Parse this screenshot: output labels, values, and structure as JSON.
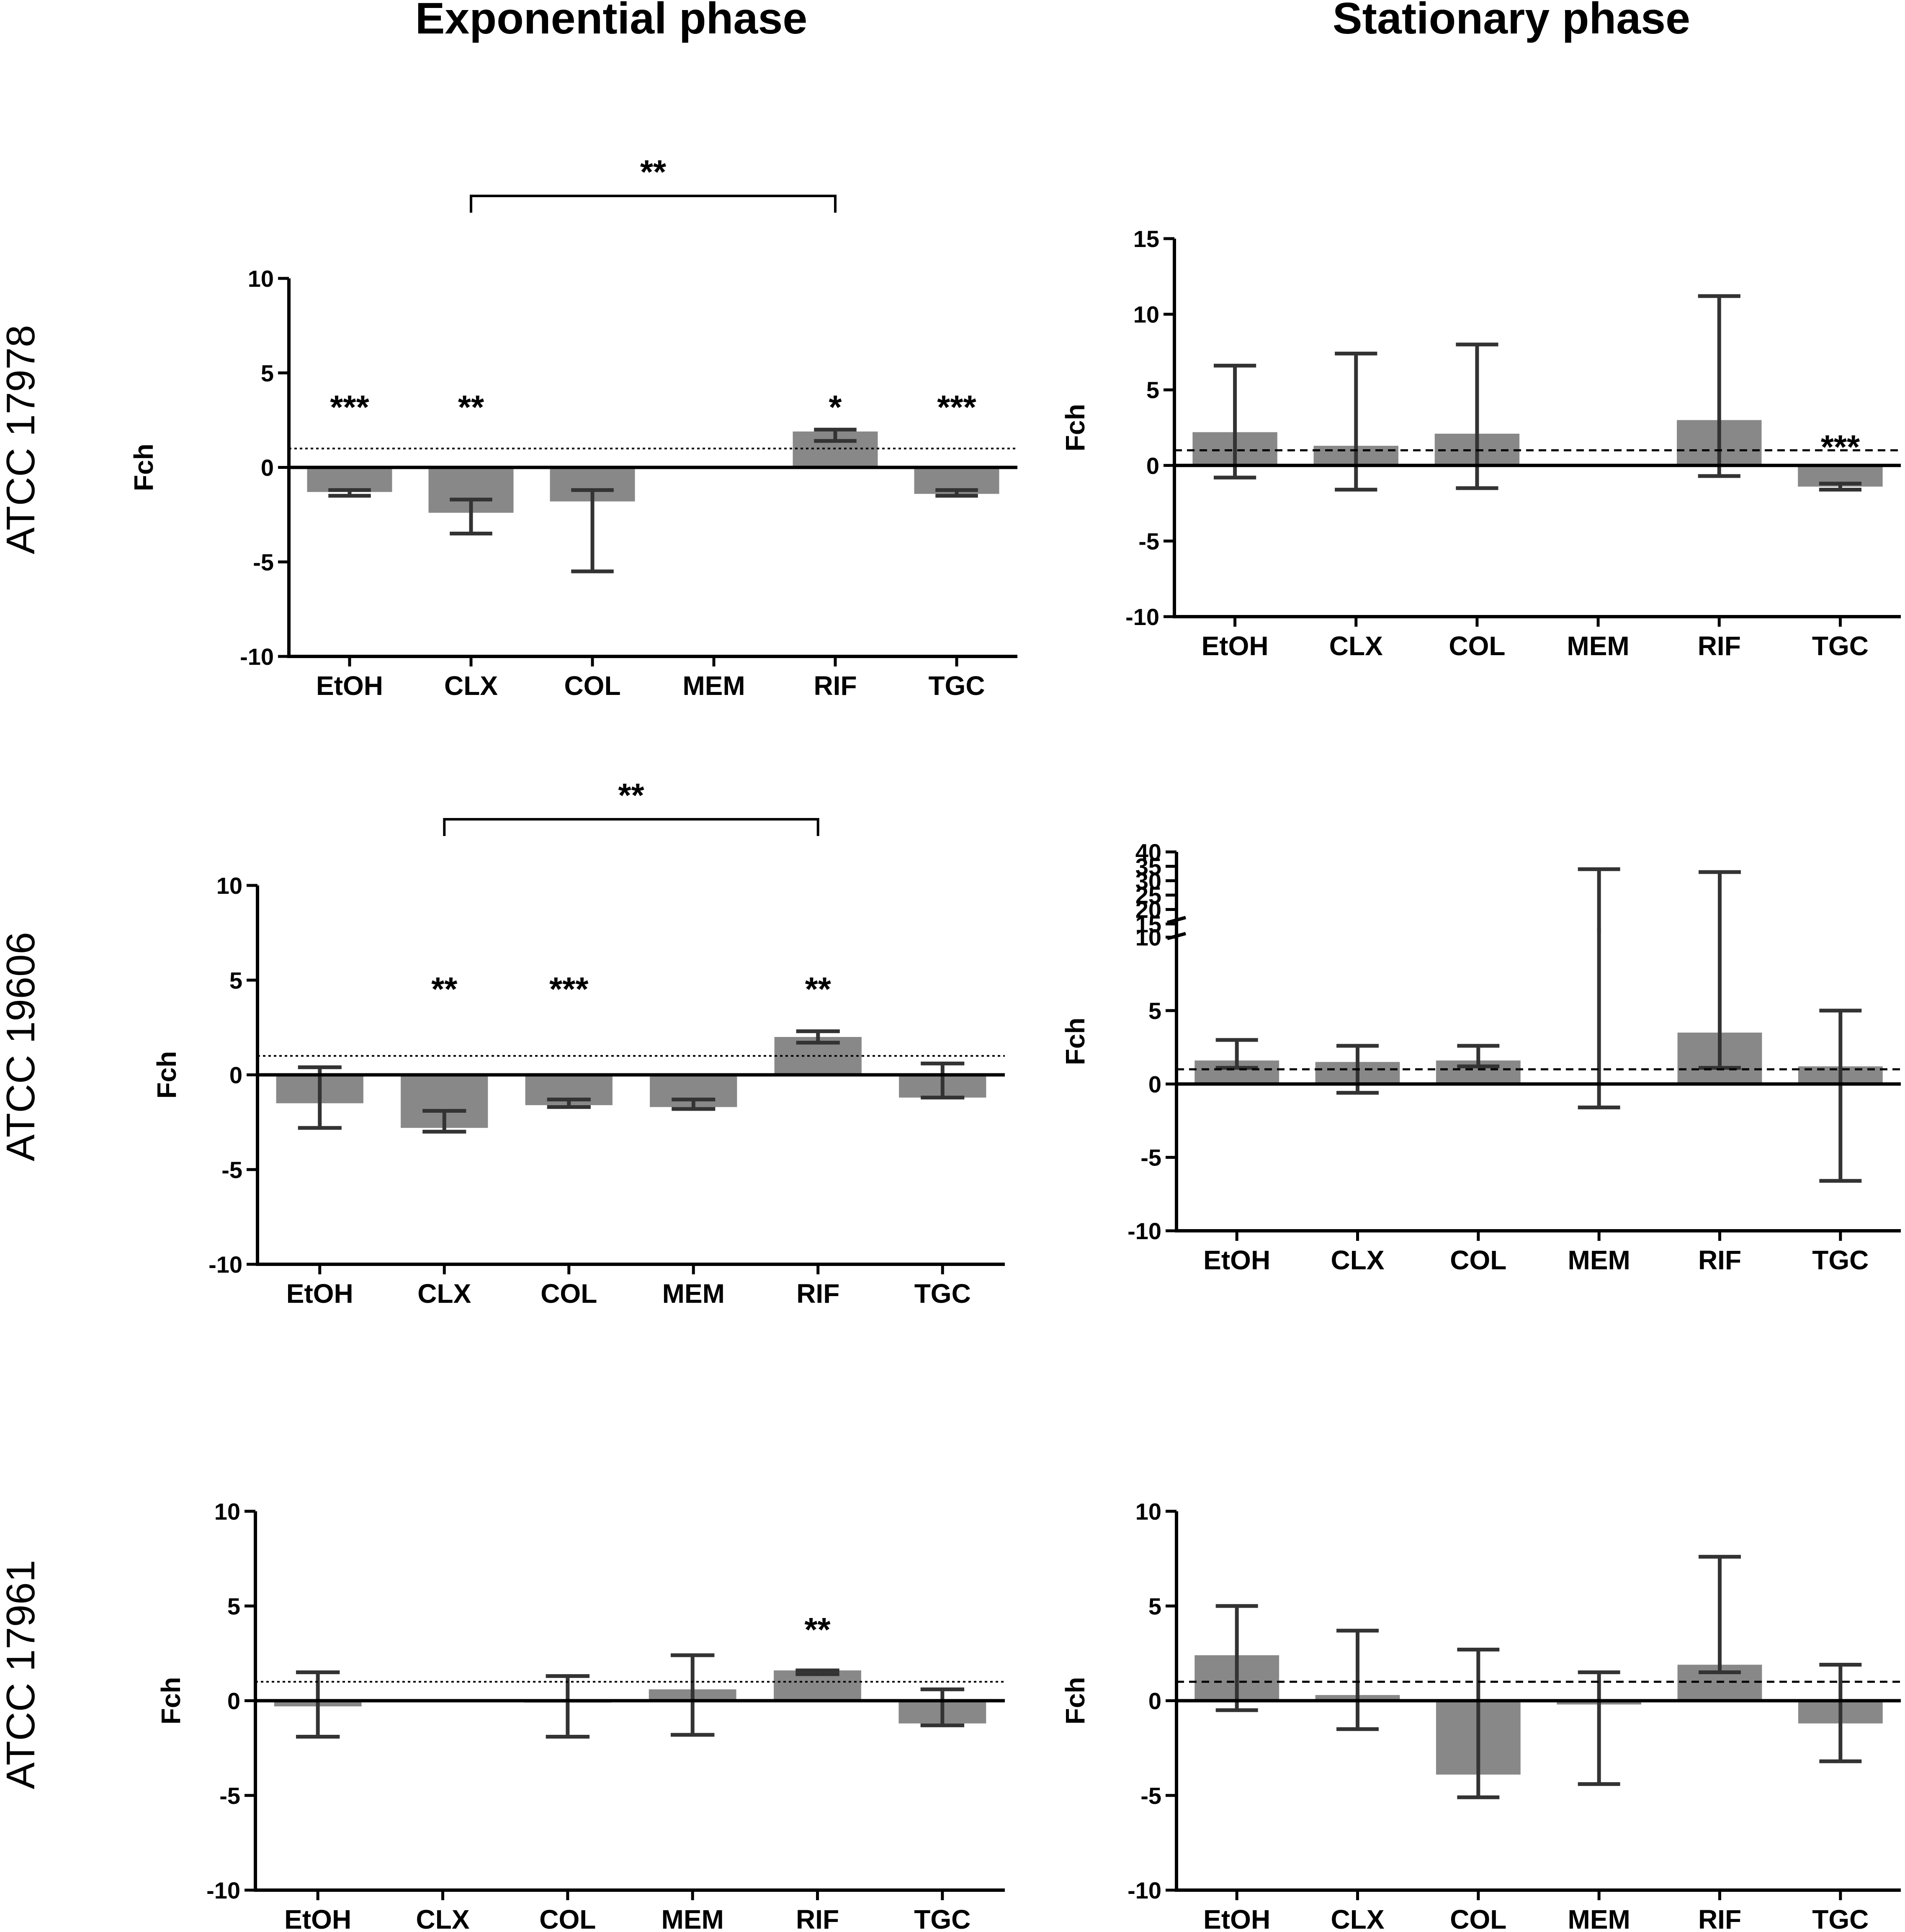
{
  "column_titles": [
    "Exponential phase",
    "Stationary phase"
  ],
  "row_labels": [
    "ATCC 17978",
    "ATCC 19606",
    "ATCC 17961"
  ],
  "colors": {
    "bar": "#888888",
    "error": "#333333",
    "axis": "#000000"
  },
  "chart_data": [
    {
      "id": "exp-17978",
      "type": "bar",
      "title": "",
      "xlabel": "",
      "ylabel": "Fch",
      "categories": [
        "EtOH",
        "CLX",
        "COL",
        "MEM",
        "RIF",
        "TGC"
      ],
      "ylim": [
        -10,
        10
      ],
      "yticks": [
        -10,
        -5,
        0,
        5,
        10
      ],
      "values": [
        -1.3,
        -2.4,
        -1.8,
        0,
        1.9,
        -1.4
      ],
      "err_low": [
        -1.5,
        -3.5,
        -5.5,
        null,
        1.4,
        -1.5
      ],
      "err_high": [
        -1.2,
        -1.7,
        -1.2,
        null,
        2.0,
        -1.2
      ],
      "annotations": [
        "***",
        "**",
        "",
        "",
        "*",
        "***"
      ],
      "reference_line": 1,
      "reference_style": "dotted",
      "bracket": {
        "from": "CLX",
        "to": "RIF",
        "label": "**"
      }
    },
    {
      "id": "stat-17978",
      "type": "bar",
      "title": "",
      "xlabel": "",
      "ylabel": "Fch",
      "categories": [
        "EtOH",
        "CLX",
        "COL",
        "MEM",
        "RIF",
        "TGC"
      ],
      "ylim": [
        -10,
        15
      ],
      "yticks": [
        -10,
        -5,
        0,
        5,
        10,
        15
      ],
      "values": [
        2.2,
        1.3,
        2.1,
        0,
        3.0,
        -1.4
      ],
      "err_low": [
        -0.8,
        -1.6,
        -1.5,
        null,
        -0.7,
        -1.6
      ],
      "err_high": [
        6.6,
        7.4,
        8.0,
        null,
        11.2,
        -1.2
      ],
      "annotations": [
        "",
        "",
        "",
        "",
        "",
        "***"
      ],
      "reference_line": 1,
      "reference_style": "dashed"
    },
    {
      "id": "exp-19606",
      "type": "bar",
      "title": "",
      "xlabel": "",
      "ylabel": "Fch",
      "categories": [
        "EtOH",
        "CLX",
        "COL",
        "MEM",
        "RIF",
        "TGC"
      ],
      "ylim": [
        -10,
        10
      ],
      "yticks": [
        -10,
        -5,
        0,
        5,
        10
      ],
      "values": [
        -1.5,
        -2.8,
        -1.6,
        -1.7,
        2.0,
        -1.2
      ],
      "err_low": [
        -2.8,
        -3.0,
        -1.7,
        -1.8,
        1.7,
        -1.2
      ],
      "err_high": [
        0.4,
        -1.9,
        -1.3,
        -1.3,
        2.3,
        0.6
      ],
      "annotations": [
        "",
        "**",
        "***",
        "",
        "**",
        ""
      ],
      "reference_line": 1,
      "reference_style": "dotted",
      "bracket": {
        "from": "CLX",
        "to": "RIF",
        "label": "**"
      }
    },
    {
      "id": "stat-19606",
      "type": "bar",
      "title": "",
      "xlabel": "",
      "ylabel": "Fch",
      "categories": [
        "EtOH",
        "CLX",
        "COL",
        "MEM",
        "RIF",
        "TGC"
      ],
      "ylim": [
        -10,
        40
      ],
      "yticks": [
        -10,
        -5,
        0,
        5,
        10,
        15,
        20,
        25,
        30,
        35,
        40
      ],
      "axis_break": {
        "lower_max": 10,
        "upper_min": 15
      },
      "values": [
        1.6,
        1.5,
        1.6,
        0,
        3.5,
        1.2
      ],
      "err_low": [
        1.1,
        -0.6,
        1.2,
        -1.6,
        1.1,
        -6.6
      ],
      "err_high": [
        3.0,
        2.6,
        2.6,
        34,
        33,
        5.0
      ],
      "annotations": [
        "",
        "",
        "",
        "",
        "",
        ""
      ],
      "reference_line": 1,
      "reference_style": "dashed"
    },
    {
      "id": "exp-17961",
      "type": "bar",
      "title": "",
      "xlabel": "",
      "ylabel": "Fch",
      "categories": [
        "EtOH",
        "CLX",
        "COL",
        "MEM",
        "RIF",
        "TGC"
      ],
      "ylim": [
        -10,
        10
      ],
      "yticks": [
        -10,
        -5,
        0,
        5,
        10
      ],
      "values": [
        -0.3,
        0,
        -0.1,
        0.6,
        1.6,
        -1.2
      ],
      "err_low": [
        -1.9,
        null,
        -1.9,
        -1.8,
        1.4,
        -1.3
      ],
      "err_high": [
        1.5,
        null,
        1.3,
        2.4,
        1.6,
        0.6
      ],
      "annotations": [
        "",
        "",
        "",
        "",
        "**",
        ""
      ],
      "reference_line": 1,
      "reference_style": "dotted"
    },
    {
      "id": "stat-17961",
      "type": "bar",
      "title": "",
      "xlabel": "",
      "ylabel": "Fch",
      "categories": [
        "EtOH",
        "CLX",
        "COL",
        "MEM",
        "RIF",
        "TGC"
      ],
      "ylim": [
        -10,
        10
      ],
      "yticks": [
        -10,
        -5,
        0,
        5,
        10
      ],
      "values": [
        2.4,
        0.3,
        -3.9,
        -0.2,
        1.9,
        -1.2
      ],
      "err_low": [
        -0.5,
        -1.5,
        -5.1,
        -4.4,
        1.5,
        -3.2
      ],
      "err_high": [
        5.0,
        3.7,
        2.7,
        1.5,
        7.6,
        1.9
      ],
      "annotations": [
        "",
        "",
        "",
        "",
        "",
        ""
      ],
      "reference_line": 1,
      "reference_style": "dashed"
    }
  ]
}
